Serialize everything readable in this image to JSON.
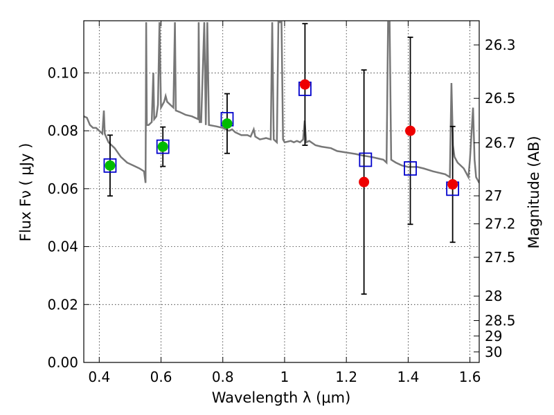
{
  "chart_data": {
    "type": "scatter",
    "xlabel": "Wavelength  λ (μm)",
    "ylabel": "Flux  Fν  ( μJy )",
    "y2label": "Magnitude (AB)",
    "xlim": [
      0.35,
      1.63
    ],
    "ylim": [
      0.0,
      0.118
    ],
    "grid": true,
    "x_ticks": [
      {
        "v": 0.4,
        "label": "0.4"
      },
      {
        "v": 0.6,
        "label": "0.6"
      },
      {
        "v": 0.8,
        "label": "0.8"
      },
      {
        "v": 1.0,
        "label": "1"
      },
      {
        "v": 1.2,
        "label": "1.2"
      },
      {
        "v": 1.4,
        "label": "1.4"
      },
      {
        "v": 1.6,
        "label": "1.6"
      }
    ],
    "y_ticks": [
      {
        "v": 0.0,
        "label": "0.00"
      },
      {
        "v": 0.02,
        "label": "0.02"
      },
      {
        "v": 0.04,
        "label": "0.04"
      },
      {
        "v": 0.06,
        "label": "0.06"
      },
      {
        "v": 0.08,
        "label": "0.08"
      },
      {
        "v": 0.1,
        "label": "0.10"
      }
    ],
    "magnitude_ticks": [
      {
        "mag": 26.3,
        "label": "26.3"
      },
      {
        "mag": 26.5,
        "label": "26.5"
      },
      {
        "mag": 26.7,
        "label": "26.7"
      },
      {
        "mag": 27.0,
        "label": "27"
      },
      {
        "mag": 27.2,
        "label": "27.2"
      },
      {
        "mag": 27.5,
        "label": "27.5"
      },
      {
        "mag": 28.0,
        "label": "28"
      },
      {
        "mag": 28.5,
        "label": "28.5"
      },
      {
        "mag": 29.0,
        "label": "29"
      },
      {
        "mag": 30.0,
        "label": "30"
      }
    ],
    "series": [
      {
        "marker": "open-square",
        "color": "#0000cc",
        "points": [
          {
            "x": 0.435,
            "y": 0.068
          },
          {
            "x": 0.606,
            "y": 0.0745
          },
          {
            "x": 0.814,
            "y": 0.084
          },
          {
            "x": 1.066,
            "y": 0.0945
          },
          {
            "x": 1.262,
            "y": 0.07
          },
          {
            "x": 1.407,
            "y": 0.067
          },
          {
            "x": 1.544,
            "y": 0.06
          }
        ]
      },
      {
        "marker": "filled-circle",
        "color": "#00bb00",
        "points": [
          {
            "x": 0.435,
            "y": 0.068,
            "err": 0.0105
          },
          {
            "x": 0.606,
            "y": 0.0745,
            "err": 0.0068
          },
          {
            "x": 0.814,
            "y": 0.0825,
            "err": 0.0103
          }
        ]
      },
      {
        "marker": "filled-circle",
        "color": "#ee0000",
        "points": [
          {
            "x": 1.066,
            "y": 0.096,
            "err": 0.021
          },
          {
            "x": 1.257,
            "y": 0.0623,
            "err": 0.0387
          },
          {
            "x": 1.407,
            "y": 0.08,
            "err": 0.0323
          },
          {
            "x": 1.544,
            "y": 0.0615,
            "err": 0.02
          }
        ]
      },
      {
        "type": "line",
        "color": "#777777",
        "points": [
          [
            0.35,
            0.085
          ],
          [
            0.36,
            0.0845
          ],
          [
            0.37,
            0.082
          ],
          [
            0.38,
            0.081
          ],
          [
            0.39,
            0.081
          ],
          [
            0.4,
            0.08
          ],
          [
            0.41,
            0.079
          ],
          [
            0.415,
            0.087
          ],
          [
            0.418,
            0.079
          ],
          [
            0.43,
            0.076
          ],
          [
            0.45,
            0.074
          ],
          [
            0.47,
            0.071
          ],
          [
            0.49,
            0.069
          ],
          [
            0.51,
            0.068
          ],
          [
            0.53,
            0.067
          ],
          [
            0.545,
            0.066
          ],
          [
            0.55,
            0.062
          ],
          [
            0.552,
            0.1175
          ],
          [
            0.554,
            0.082
          ],
          [
            0.56,
            0.082
          ],
          [
            0.57,
            0.083
          ],
          [
            0.575,
            0.1
          ],
          [
            0.578,
            0.084
          ],
          [
            0.585,
            0.085
          ],
          [
            0.59,
            0.089
          ],
          [
            0.595,
            0.1175
          ],
          [
            0.6,
            0.088
          ],
          [
            0.61,
            0.09
          ],
          [
            0.615,
            0.092
          ],
          [
            0.62,
            0.09
          ],
          [
            0.63,
            0.089
          ],
          [
            0.64,
            0.088
          ],
          [
            0.645,
            0.1175
          ],
          [
            0.648,
            0.087
          ],
          [
            0.66,
            0.0865
          ],
          [
            0.67,
            0.086
          ],
          [
            0.68,
            0.0855
          ],
          [
            0.7,
            0.085
          ],
          [
            0.72,
            0.084
          ],
          [
            0.722,
            0.1175
          ],
          [
            0.725,
            0.083
          ],
          [
            0.73,
            0.083
          ],
          [
            0.74,
            0.1175
          ],
          [
            0.745,
            0.082
          ],
          [
            0.75,
            0.1175
          ],
          [
            0.755,
            0.082
          ],
          [
            0.78,
            0.0815
          ],
          [
            0.8,
            0.081
          ],
          [
            0.82,
            0.08
          ],
          [
            0.83,
            0.0805
          ],
          [
            0.84,
            0.0795
          ],
          [
            0.85,
            0.079
          ],
          [
            0.86,
            0.0785
          ],
          [
            0.88,
            0.0785
          ],
          [
            0.89,
            0.078
          ],
          [
            0.9,
            0.0805
          ],
          [
            0.905,
            0.078
          ],
          [
            0.92,
            0.077
          ],
          [
            0.94,
            0.0775
          ],
          [
            0.955,
            0.077
          ],
          [
            0.96,
            0.1175
          ],
          [
            0.965,
            0.077
          ],
          [
            0.975,
            0.076
          ],
          [
            0.98,
            0.1175
          ],
          [
            0.99,
            0.1175
          ],
          [
            0.995,
            0.077
          ],
          [
            1.0,
            0.076
          ],
          [
            1.02,
            0.0765
          ],
          [
            1.03,
            0.076
          ],
          [
            1.04,
            0.0765
          ],
          [
            1.05,
            0.076
          ],
          [
            1.06,
            0.077
          ],
          [
            1.065,
            0.0835
          ],
          [
            1.07,
            0.076
          ],
          [
            1.08,
            0.0765
          ],
          [
            1.1,
            0.075
          ],
          [
            1.12,
            0.0745
          ],
          [
            1.15,
            0.074
          ],
          [
            1.17,
            0.073
          ],
          [
            1.2,
            0.0725
          ],
          [
            1.23,
            0.072
          ],
          [
            1.25,
            0.0715
          ],
          [
            1.28,
            0.071
          ],
          [
            1.3,
            0.0705
          ],
          [
            1.32,
            0.07
          ],
          [
            1.33,
            0.069
          ],
          [
            1.335,
            0.1175
          ],
          [
            1.34,
            0.1175
          ],
          [
            1.345,
            0.07
          ],
          [
            1.36,
            0.069
          ],
          [
            1.38,
            0.068
          ],
          [
            1.4,
            0.0675
          ],
          [
            1.43,
            0.0675
          ],
          [
            1.45,
            0.067
          ],
          [
            1.48,
            0.066
          ],
          [
            1.5,
            0.0655
          ],
          [
            1.52,
            0.065
          ],
          [
            1.535,
            0.064
          ],
          [
            1.54,
            0.0965
          ],
          [
            1.545,
            0.075
          ],
          [
            1.55,
            0.071
          ],
          [
            1.56,
            0.069
          ],
          [
            1.58,
            0.067
          ],
          [
            1.595,
            0.064
          ],
          [
            1.6,
            0.07
          ],
          [
            1.61,
            0.088
          ],
          [
            1.615,
            0.07
          ],
          [
            1.62,
            0.064
          ],
          [
            1.625,
            0.063
          ],
          [
            1.63,
            0.062
          ]
        ]
      }
    ]
  }
}
